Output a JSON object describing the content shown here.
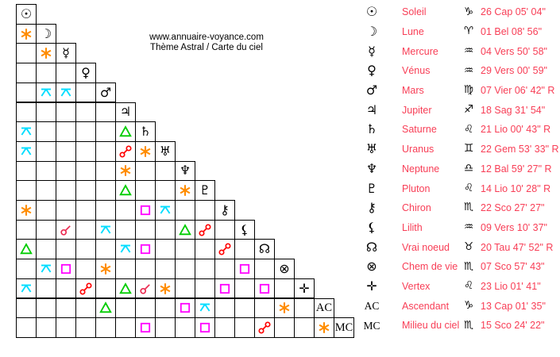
{
  "title": {
    "line1": "www.annuaire-voyance.com",
    "line2": "Thème Astral / Carte du ciel"
  },
  "colors": {
    "legend_text": "#f83e56",
    "glyphs": "#000000",
    "aspects": {
      "conjunction": "#ea2a50",
      "sextile": "#ff8c00",
      "square": "#ff00ff",
      "trine": "#00cc00",
      "opposition": "#ff0000",
      "quincunx": "#00ddff"
    }
  },
  "planets": [
    {
      "name": "Soleil",
      "glyph": "☉",
      "sign": "♑",
      "position": "26 Cap 05' 04\""
    },
    {
      "name": "Lune",
      "glyph": "☽",
      "sign": "♈",
      "position": "01 Bel 08' 56\""
    },
    {
      "name": "Mercure",
      "glyph": "☿",
      "sign": "♒",
      "position": "04 Vers 50' 58\""
    },
    {
      "name": "Vénus",
      "glyph": "♀",
      "sign": "♒",
      "position": "29 Vers 00' 59\""
    },
    {
      "name": "Mars",
      "glyph": "♂",
      "sign": "♍",
      "position": "07 Vier 06' 42\" R"
    },
    {
      "name": "Jupiter",
      "glyph": "♃",
      "sign": "♐",
      "position": "18 Sag 31' 54\""
    },
    {
      "name": "Saturne",
      "glyph": "♄",
      "sign": "♌",
      "position": "21 Lio 00' 43\" R"
    },
    {
      "name": "Uranus",
      "glyph": "♅",
      "sign": "♊",
      "position": "22 Gem 53' 33\" R"
    },
    {
      "name": "Neptune",
      "glyph": "♆",
      "sign": "♎",
      "position": "12 Bal 59' 27\" R"
    },
    {
      "name": "Pluton",
      "glyph": "♇",
      "sign": "♌",
      "position": "14 Lio 10' 28\" R"
    },
    {
      "name": "Chiron",
      "glyph": "⚷",
      "sign": "♏",
      "position": "22 Sco 27' 27\""
    },
    {
      "name": "Lilith",
      "glyph": "⚸",
      "sign": "♒",
      "position": "09 Vers 10' 37\""
    },
    {
      "name": "Vrai noeud",
      "glyph": "☊",
      "sign": "♉",
      "position": "20 Tau 47' 52\" R"
    },
    {
      "name": "Chem de vie",
      "glyph": "⊗",
      "sign": "♏",
      "position": "07 Sco 57' 43\""
    },
    {
      "name": "Vertex",
      "glyph": "✛",
      "sign": "♌",
      "position": "23 Lio 01' 41\""
    },
    {
      "name": "Ascendant",
      "glyph": "AC",
      "sign": "♑",
      "position": "13 Cap 01' 35\"",
      "text_glyph": true
    },
    {
      "name": "Milieu du ciel",
      "glyph": "MC",
      "sign": "♏",
      "position": "15 Sco 24' 22\"",
      "text_glyph": true
    }
  ],
  "aspects": [
    {
      "row": 1,
      "col": 0,
      "type": "sextile"
    },
    {
      "row": 2,
      "col": 1,
      "type": "sextile"
    },
    {
      "row": 4,
      "col": 1,
      "type": "quincunx"
    },
    {
      "row": 4,
      "col": 2,
      "type": "quincunx"
    },
    {
      "row": 6,
      "col": 0,
      "type": "quincunx"
    },
    {
      "row": 6,
      "col": 5,
      "type": "trine"
    },
    {
      "row": 7,
      "col": 0,
      "type": "quincunx"
    },
    {
      "row": 7,
      "col": 5,
      "type": "opposition"
    },
    {
      "row": 7,
      "col": 6,
      "type": "sextile"
    },
    {
      "row": 8,
      "col": 5,
      "type": "sextile"
    },
    {
      "row": 9,
      "col": 5,
      "type": "trine"
    },
    {
      "row": 9,
      "col": 8,
      "type": "sextile"
    },
    {
      "row": 10,
      "col": 0,
      "type": "sextile"
    },
    {
      "row": 10,
      "col": 6,
      "type": "square"
    },
    {
      "row": 10,
      "col": 7,
      "type": "quincunx"
    },
    {
      "row": 11,
      "col": 2,
      "type": "conjunction"
    },
    {
      "row": 11,
      "col": 4,
      "type": "quincunx"
    },
    {
      "row": 11,
      "col": 8,
      "type": "trine"
    },
    {
      "row": 11,
      "col": 9,
      "type": "opposition"
    },
    {
      "row": 12,
      "col": 0,
      "type": "trine"
    },
    {
      "row": 12,
      "col": 5,
      "type": "quincunx"
    },
    {
      "row": 12,
      "col": 6,
      "type": "square"
    },
    {
      "row": 12,
      "col": 10,
      "type": "opposition"
    },
    {
      "row": 13,
      "col": 1,
      "type": "quincunx"
    },
    {
      "row": 13,
      "col": 2,
      "type": "square"
    },
    {
      "row": 13,
      "col": 4,
      "type": "sextile"
    },
    {
      "row": 13,
      "col": 11,
      "type": "square"
    },
    {
      "row": 14,
      "col": 0,
      "type": "quincunx"
    },
    {
      "row": 14,
      "col": 3,
      "type": "opposition"
    },
    {
      "row": 14,
      "col": 5,
      "type": "trine"
    },
    {
      "row": 14,
      "col": 6,
      "type": "conjunction"
    },
    {
      "row": 14,
      "col": 7,
      "type": "sextile"
    },
    {
      "row": 14,
      "col": 10,
      "type": "square"
    },
    {
      "row": 14,
      "col": 12,
      "type": "square"
    },
    {
      "row": 15,
      "col": 4,
      "type": "trine"
    },
    {
      "row": 15,
      "col": 8,
      "type": "square"
    },
    {
      "row": 15,
      "col": 9,
      "type": "quincunx"
    },
    {
      "row": 15,
      "col": 13,
      "type": "sextile"
    },
    {
      "row": 16,
      "col": 6,
      "type": "square"
    },
    {
      "row": 16,
      "col": 9,
      "type": "square"
    },
    {
      "row": 16,
      "col": 12,
      "type": "opposition"
    },
    {
      "row": 16,
      "col": 15,
      "type": "sextile"
    }
  ]
}
